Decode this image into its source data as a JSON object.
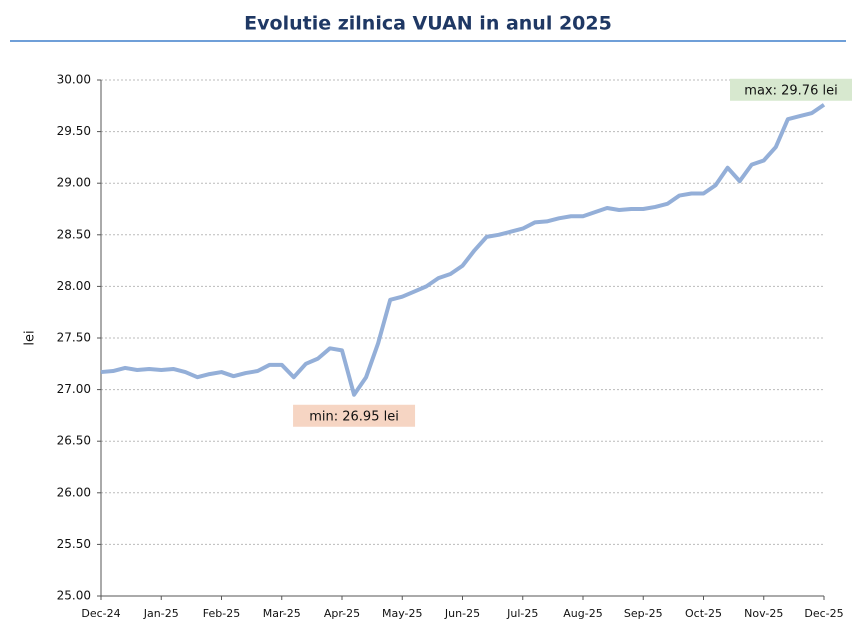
{
  "chart_data": {
    "type": "line",
    "title": "Evolutie zilnica VUAN in anul 2025",
    "ylabel": "lei",
    "categories": [
      "Dec-24",
      null,
      null,
      null,
      null,
      "Jan-25",
      null,
      null,
      null,
      null,
      "Feb-25",
      null,
      null,
      null,
      null,
      "Mar-25",
      null,
      null,
      null,
      null,
      "Apr-25",
      null,
      null,
      null,
      null,
      "May-25",
      null,
      null,
      null,
      null,
      "Jun-25",
      null,
      null,
      null,
      null,
      "Jul-25",
      null,
      null,
      null,
      null,
      "Aug-25",
      null,
      null,
      null,
      null,
      "Sep-25",
      null,
      null,
      null,
      null,
      "Oct-25",
      null,
      null,
      null,
      null,
      "Nov-25",
      null,
      null,
      null,
      null,
      "Dec-25"
    ],
    "series": [
      {
        "name": "VUAN",
        "color": "#94afd8",
        "values": [
          27.17,
          27.18,
          27.21,
          27.19,
          27.2,
          27.19,
          27.2,
          27.17,
          27.12,
          27.15,
          27.17,
          27.13,
          27.16,
          27.18,
          27.24,
          27.24,
          27.12,
          27.25,
          27.3,
          27.4,
          27.38,
          26.95,
          27.12,
          27.45,
          27.87,
          27.9,
          27.95,
          28.0,
          28.08,
          28.12,
          28.2,
          28.35,
          28.48,
          28.5,
          28.53,
          28.56,
          28.62,
          28.63,
          28.66,
          28.68,
          28.68,
          28.72,
          28.76,
          28.74,
          28.75,
          28.75,
          28.77,
          28.8,
          28.88,
          28.9,
          28.9,
          28.98,
          29.15,
          29.02,
          29.18,
          29.22,
          29.35,
          29.62,
          29.65,
          29.68,
          29.76
        ]
      }
    ],
    "annotations": [
      {
        "text": "min: 26.95 lei",
        "index": 21,
        "color": "#f6d5c3"
      },
      {
        "text": "max: 29.76 lei",
        "index": 60,
        "color": "#d7e8cf"
      }
    ],
    "ylim": [
      25,
      30
    ],
    "yticks": [
      {
        "value": 25,
        "label": "25.00"
      },
      {
        "value": 25.5,
        "label": "25.50"
      },
      {
        "value": 26,
        "label": "26.00"
      },
      {
        "value": 26.5,
        "label": "26.50"
      },
      {
        "value": 27,
        "label": "27.00"
      },
      {
        "value": 27.5,
        "label": "27.50"
      },
      {
        "value": 28,
        "label": "28.00"
      },
      {
        "value": 28.5,
        "label": "28.50"
      },
      {
        "value": 29,
        "label": "29.00"
      },
      {
        "value": 29.5,
        "label": "29.50"
      },
      {
        "value": 30,
        "label": "30.00"
      }
    ],
    "grid": true
  }
}
